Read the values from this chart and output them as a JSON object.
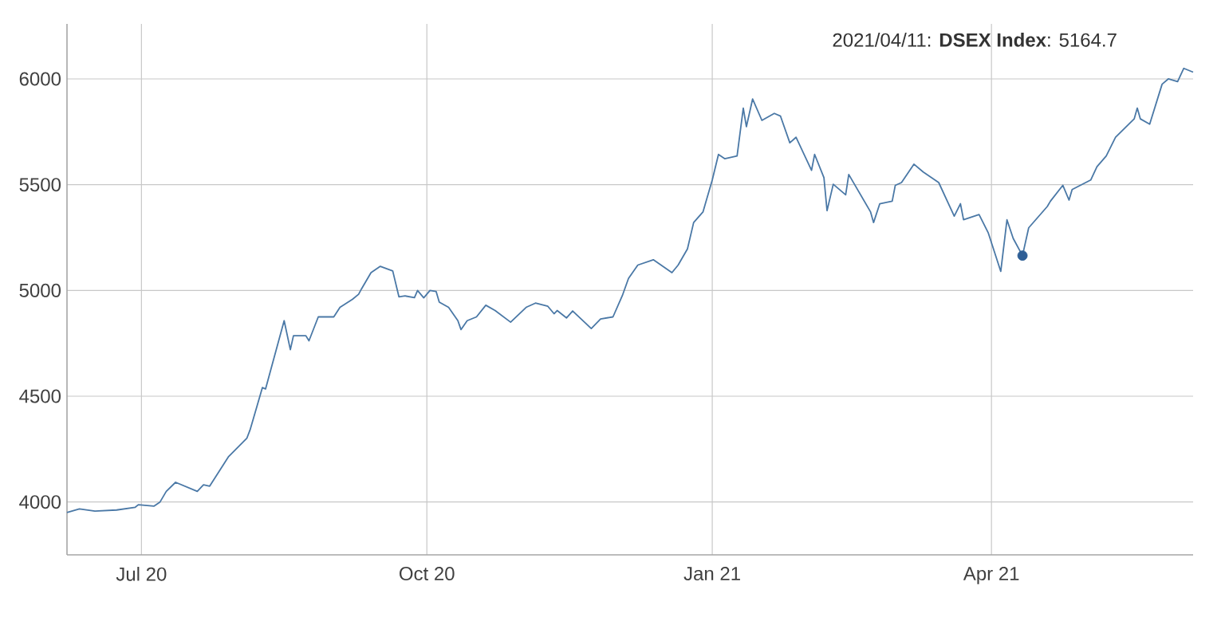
{
  "chart_data": {
    "type": "line",
    "grid": true,
    "marker": "none",
    "line_style": "solid",
    "xlim": [
      "2020-06-07",
      "2021-06-05"
    ],
    "ylim": [
      3750,
      6260
    ],
    "xticks": [
      {
        "value": "2020-07-01",
        "label": "Jul 20"
      },
      {
        "value": "2020-10-01",
        "label": "Oct 20"
      },
      {
        "value": "2021-01-01",
        "label": "Jan 21"
      },
      {
        "value": "2021-04-01",
        "label": "Apr 21"
      }
    ],
    "yticks": [
      4000,
      4500,
      5000,
      5500,
      6000
    ],
    "annotations": [
      "2021/04/11: **DSEX Index**: 5164.7"
    ],
    "series": [
      {
        "type": "scatter",
        "marker": "circle",
        "color": "#2f5f96",
        "x": [
          "2021-04-11"
        ],
        "values": [
          5164.7
        ]
      },
      {
        "color": "#4a78a6",
        "x": [
          "2020-06-07",
          "2020-06-11",
          "2020-06-16",
          "2020-06-23",
          "2020-06-29",
          "2020-06-30",
          "2020-07-05",
          "2020-07-07",
          "2020-07-09",
          "2020-07-12",
          "2020-07-19",
          "2020-07-21",
          "2020-07-23",
          "2020-07-29",
          "2020-08-04",
          "2020-08-05",
          "2020-08-09",
          "2020-08-10",
          "2020-08-16",
          "2020-08-18",
          "2020-08-19",
          "2020-08-23",
          "2020-08-24",
          "2020-08-27",
          "2020-09-01",
          "2020-09-03",
          "2020-09-07",
          "2020-09-09",
          "2020-09-10",
          "2020-09-13",
          "2020-09-16",
          "2020-09-20",
          "2020-09-22",
          "2020-09-24",
          "2020-09-27",
          "2020-09-28",
          "2020-09-30",
          "2020-10-02",
          "2020-10-04",
          "2020-10-05",
          "2020-10-08",
          "2020-10-11",
          "2020-10-12",
          "2020-10-14",
          "2020-10-17",
          "2020-10-20",
          "2020-10-23",
          "2020-10-28",
          "2020-11-02",
          "2020-11-05",
          "2020-11-09",
          "2020-11-11",
          "2020-11-12",
          "2020-11-15",
          "2020-11-17",
          "2020-11-23",
          "2020-11-26",
          "2020-11-30",
          "2020-12-03",
          "2020-12-05",
          "2020-12-08",
          "2020-12-13",
          "2020-12-19",
          "2020-12-21",
          "2020-12-24",
          "2020-12-26",
          "2020-12-29",
          "2021-01-01",
          "2021-01-03",
          "2021-01-05",
          "2021-01-09",
          "2021-01-11",
          "2021-01-12",
          "2021-01-14",
          "2021-01-17",
          "2021-01-21",
          "2021-01-23",
          "2021-01-26",
          "2021-01-28",
          "2021-02-02",
          "2021-02-03",
          "2021-02-06",
          "2021-02-07",
          "2021-02-09",
          "2021-02-13",
          "2021-02-14",
          "2021-02-21",
          "2021-02-22",
          "2021-02-24",
          "2021-02-28",
          "2021-03-01",
          "2021-03-03",
          "2021-03-07",
          "2021-03-10",
          "2021-03-15",
          "2021-03-20",
          "2021-03-22",
          "2021-03-23",
          "2021-03-28",
          "2021-03-31",
          "2021-04-04",
          "2021-04-06",
          "2021-04-08",
          "2021-04-11",
          "2021-04-13",
          "2021-04-19",
          "2021-04-20",
          "2021-04-24",
          "2021-04-26",
          "2021-04-27",
          "2021-05-03",
          "2021-05-05",
          "2021-05-08",
          "2021-05-11",
          "2021-05-17",
          "2021-05-18",
          "2021-05-19",
          "2021-05-22",
          "2021-05-26",
          "2021-05-28",
          "2021-05-31",
          "2021-06-02",
          "2021-06-05"
        ],
        "values": [
          3950,
          3967,
          3957,
          3962,
          3975,
          3987,
          3980,
          4000,
          4050,
          4093,
          4050,
          4081,
          4075,
          4213,
          4302,
          4340,
          4541,
          4534,
          4857,
          4720,
          4786,
          4786,
          4762,
          4875,
          4875,
          4920,
          4958,
          4982,
          5009,
          5084,
          5114,
          5092,
          4970,
          4974,
          4966,
          5000,
          4965,
          5000,
          4995,
          4945,
          4920,
          4857,
          4815,
          4857,
          4875,
          4930,
          4905,
          4850,
          4920,
          4940,
          4925,
          4890,
          4905,
          4870,
          4903,
          4820,
          4865,
          4875,
          4975,
          5057,
          5120,
          5145,
          5084,
          5120,
          5196,
          5321,
          5371,
          5522,
          5643,
          5623,
          5636,
          5862,
          5774,
          5905,
          5804,
          5837,
          5824,
          5698,
          5724,
          5568,
          5643,
          5533,
          5377,
          5502,
          5452,
          5548,
          5372,
          5321,
          5410,
          5422,
          5497,
          5510,
          5597,
          5560,
          5510,
          5351,
          5410,
          5334,
          5359,
          5271,
          5090,
          5334,
          5246,
          5164.7,
          5296,
          5397,
          5422,
          5497,
          5427,
          5477,
          5522,
          5585,
          5636,
          5724,
          5811,
          5862,
          5811,
          5786,
          5975,
          6000,
          5987,
          6050,
          6032
        ]
      }
    ]
  }
}
